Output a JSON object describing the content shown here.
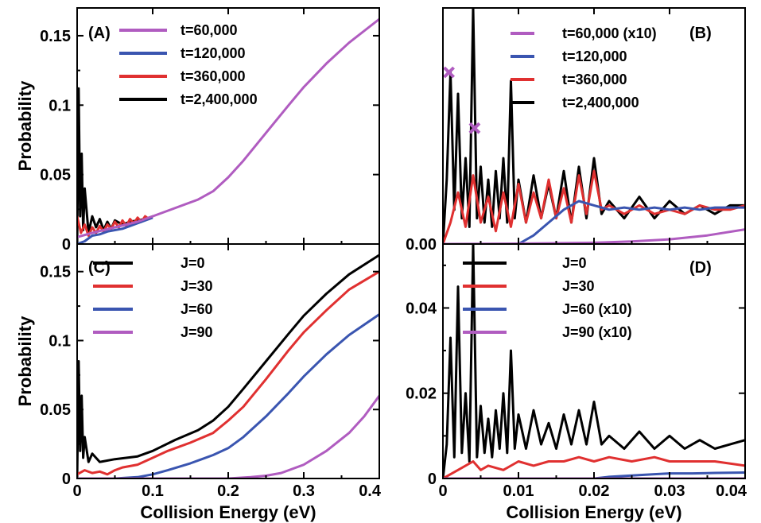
{
  "chart_data": [
    {
      "panel": "A",
      "type": "line",
      "panel_label": "(A)",
      "ylabel": "Probability",
      "xlabel": "",
      "xlim": [
        0,
        0.4
      ],
      "ylim": [
        0,
        0.17
      ],
      "x_ticks": [
        0,
        0.1,
        0.2,
        0.3,
        0.4
      ],
      "x_tick_labels": [
        "",
        "",
        "",
        "",
        ""
      ],
      "y_ticks": [
        0,
        0.05,
        0.1,
        0.15
      ],
      "y_tick_labels": [
        "0",
        "0.05",
        "0.1",
        "0.15"
      ],
      "legend_position": "top-right",
      "series": [
        {
          "name": "t=60,000",
          "color": "#b05cc0",
          "x": [
            0.0,
            0.02,
            0.05,
            0.08,
            0.1,
            0.13,
            0.16,
            0.18,
            0.2,
            0.22,
            0.25,
            0.28,
            0.3,
            0.33,
            0.36,
            0.4
          ],
          "y": [
            0.005,
            0.008,
            0.012,
            0.016,
            0.02,
            0.026,
            0.032,
            0.038,
            0.048,
            0.06,
            0.08,
            0.1,
            0.113,
            0.13,
            0.145,
            0.162
          ]
        },
        {
          "name": "t=120,000",
          "color": "#3a55b0",
          "x": [
            0.0,
            0.01,
            0.02,
            0.03,
            0.04,
            0.05,
            0.06,
            0.07,
            0.08,
            0.09,
            0.1
          ],
          "y": [
            0.0,
            0.002,
            0.006,
            0.007,
            0.009,
            0.01,
            0.011,
            0.013,
            0.015,
            0.017,
            0.019
          ]
        },
        {
          "name": "t=360,000",
          "color": "#e03030",
          "x": [
            0.0,
            0.005,
            0.01,
            0.015,
            0.02,
            0.025,
            0.03,
            0.035,
            0.04,
            0.045,
            0.05,
            0.055,
            0.06,
            0.065,
            0.07,
            0.075,
            0.08,
            0.085,
            0.09,
            0.095,
            0.1
          ],
          "y": [
            0.02,
            0.008,
            0.014,
            0.006,
            0.012,
            0.008,
            0.013,
            0.009,
            0.014,
            0.011,
            0.016,
            0.012,
            0.017,
            0.013,
            0.018,
            0.015,
            0.019,
            0.016,
            0.02,
            0.018,
            0.02
          ]
        },
        {
          "name": "t=2,400,000",
          "color": "#000000",
          "x": [
            0.0,
            0.002,
            0.004,
            0.006,
            0.008,
            0.01,
            0.015,
            0.02,
            0.025,
            0.03,
            0.035,
            0.04,
            0.045,
            0.05,
            0.06,
            0.07,
            0.08,
            0.09,
            0.1
          ],
          "y": [
            0.0,
            0.112,
            0.02,
            0.065,
            0.01,
            0.04,
            0.008,
            0.02,
            0.012,
            0.018,
            0.01,
            0.016,
            0.011,
            0.017,
            0.014,
            0.016,
            0.017,
            0.018,
            0.02
          ]
        }
      ]
    },
    {
      "panel": "B",
      "type": "line",
      "panel_label": "(B)",
      "ylabel": "",
      "xlabel": "",
      "xlim": [
        0,
        0.04
      ],
      "ylim": [
        0,
        0.055
      ],
      "x_ticks": [
        0,
        0.01,
        0.02,
        0.03,
        0.04
      ],
      "x_tick_labels": [
        "",
        "",
        "",
        "",
        ""
      ],
      "y_ticks": [
        0
      ],
      "y_tick_labels": [
        "0.00"
      ],
      "legend_position": "top-right",
      "markers": [
        {
          "x": 0.0008,
          "y": 0.04,
          "color": "#b05cc0"
        },
        {
          "x": 0.0042,
          "y": 0.027,
          "color": "#b05cc0"
        }
      ],
      "series": [
        {
          "name": "t=60,000 (x10)",
          "color": "#b05cc0",
          "x": [
            0.0,
            0.01,
            0.02,
            0.025,
            0.03,
            0.035,
            0.04
          ],
          "y": [
            0.0,
            0.0001,
            0.0003,
            0.0006,
            0.0011,
            0.002,
            0.0034
          ]
        },
        {
          "name": "t=120,000",
          "color": "#3a55b0",
          "x": [
            0.0,
            0.01,
            0.012,
            0.014,
            0.016,
            0.018,
            0.02,
            0.022,
            0.024,
            0.026,
            0.028,
            0.03,
            0.032,
            0.034,
            0.036,
            0.038,
            0.04
          ],
          "y": [
            0.0,
            0.0,
            0.002,
            0.005,
            0.008,
            0.01,
            0.009,
            0.008,
            0.0085,
            0.008,
            0.0085,
            0.008,
            0.0085,
            0.008,
            0.0085,
            0.0085,
            0.0085
          ]
        },
        {
          "name": "t=360,000",
          "color": "#e03030",
          "x": [
            0.0,
            0.001,
            0.002,
            0.003,
            0.004,
            0.005,
            0.006,
            0.007,
            0.008,
            0.009,
            0.01,
            0.011,
            0.012,
            0.013,
            0.014,
            0.015,
            0.016,
            0.017,
            0.018,
            0.019,
            0.02,
            0.021,
            0.022,
            0.024,
            0.026,
            0.028,
            0.03,
            0.032,
            0.034,
            0.036,
            0.038,
            0.04
          ],
          "y": [
            0.0,
            0.005,
            0.012,
            0.004,
            0.016,
            0.005,
            0.011,
            0.003,
            0.012,
            0.004,
            0.014,
            0.005,
            0.012,
            0.006,
            0.015,
            0.006,
            0.013,
            0.005,
            0.016,
            0.007,
            0.017,
            0.008,
            0.009,
            0.007,
            0.009,
            0.007,
            0.008,
            0.007,
            0.009,
            0.008,
            0.008,
            0.009
          ]
        },
        {
          "name": "t=2,400,000",
          "color": "#000000",
          "x": [
            0.0,
            0.0005,
            0.001,
            0.0015,
            0.002,
            0.0025,
            0.003,
            0.0035,
            0.004,
            0.0045,
            0.005,
            0.0055,
            0.006,
            0.0065,
            0.007,
            0.0075,
            0.008,
            0.0085,
            0.009,
            0.0095,
            0.01,
            0.011,
            0.012,
            0.013,
            0.014,
            0.015,
            0.016,
            0.017,
            0.018,
            0.019,
            0.02,
            0.021,
            0.022,
            0.024,
            0.026,
            0.028,
            0.03,
            0.032,
            0.034,
            0.036,
            0.038,
            0.04
          ],
          "y": [
            0.0,
            0.015,
            0.04,
            0.008,
            0.035,
            0.006,
            0.02,
            0.004,
            0.055,
            0.006,
            0.018,
            0.005,
            0.015,
            0.004,
            0.017,
            0.006,
            0.02,
            0.005,
            0.038,
            0.006,
            0.015,
            0.005,
            0.016,
            0.006,
            0.014,
            0.006,
            0.017,
            0.005,
            0.018,
            0.006,
            0.02,
            0.007,
            0.01,
            0.006,
            0.011,
            0.006,
            0.01,
            0.007,
            0.009,
            0.007,
            0.009,
            0.009
          ]
        }
      ]
    },
    {
      "panel": "C",
      "type": "line",
      "panel_label": "(C)",
      "ylabel": "Probability",
      "xlabel": "Collision Energy (eV)",
      "xlim": [
        0,
        0.4
      ],
      "ylim": [
        0,
        0.17
      ],
      "x_ticks": [
        0,
        0.1,
        0.2,
        0.3,
        0.4
      ],
      "x_tick_labels": [
        "0",
        "0.1",
        "0.2",
        "0.3",
        "0.4"
      ],
      "y_ticks": [
        0,
        0.05,
        0.1,
        0.15
      ],
      "y_tick_labels": [
        "0",
        "0.05",
        "0.1",
        "0.15"
      ],
      "legend_position": "top-left",
      "series": [
        {
          "name": "J=0",
          "color": "#000000",
          "x": [
            0.0,
            0.002,
            0.004,
            0.006,
            0.008,
            0.01,
            0.015,
            0.02,
            0.03,
            0.05,
            0.08,
            0.1,
            0.13,
            0.16,
            0.18,
            0.2,
            0.22,
            0.25,
            0.28,
            0.3,
            0.33,
            0.36,
            0.4
          ],
          "y": [
            0.0,
            0.085,
            0.02,
            0.06,
            0.015,
            0.03,
            0.012,
            0.018,
            0.012,
            0.014,
            0.016,
            0.02,
            0.028,
            0.035,
            0.042,
            0.052,
            0.065,
            0.085,
            0.105,
            0.118,
            0.134,
            0.148,
            0.162
          ]
        },
        {
          "name": "J=30",
          "color": "#e03030",
          "x": [
            0.0,
            0.01,
            0.02,
            0.03,
            0.04,
            0.05,
            0.06,
            0.08,
            0.1,
            0.12,
            0.15,
            0.18,
            0.2,
            0.22,
            0.25,
            0.28,
            0.3,
            0.33,
            0.36,
            0.4
          ],
          "y": [
            0.003,
            0.006,
            0.004,
            0.005,
            0.003,
            0.006,
            0.008,
            0.01,
            0.015,
            0.02,
            0.026,
            0.033,
            0.042,
            0.052,
            0.072,
            0.093,
            0.106,
            0.122,
            0.137,
            0.15
          ]
        },
        {
          "name": "J=60",
          "color": "#3a55b0",
          "x": [
            0.0,
            0.05,
            0.08,
            0.1,
            0.12,
            0.15,
            0.18,
            0.2,
            0.22,
            0.25,
            0.28,
            0.3,
            0.33,
            0.36,
            0.4
          ],
          "y": [
            0.0,
            0.0,
            0.001,
            0.003,
            0.006,
            0.011,
            0.017,
            0.022,
            0.03,
            0.045,
            0.062,
            0.074,
            0.09,
            0.104,
            0.119
          ]
        },
        {
          "name": "J=90",
          "color": "#b05cc0",
          "x": [
            0.0,
            0.2,
            0.23,
            0.25,
            0.27,
            0.3,
            0.33,
            0.36,
            0.38,
            0.4
          ],
          "y": [
            0.0,
            0.0,
            0.001,
            0.002,
            0.004,
            0.01,
            0.02,
            0.033,
            0.045,
            0.06
          ]
        }
      ]
    },
    {
      "panel": "D",
      "type": "line",
      "panel_label": "(D)",
      "ylabel": "",
      "xlabel": "Collision Energy (eV)",
      "xlim": [
        0,
        0.04
      ],
      "ylim": [
        0,
        0.055
      ],
      "x_ticks": [
        0,
        0.01,
        0.02,
        0.03,
        0.04
      ],
      "x_tick_labels": [
        "0",
        "0.01",
        "0.02",
        "0.03",
        "0.04"
      ],
      "y_ticks": [
        0,
        0.02,
        0.04
      ],
      "y_tick_labels": [
        "0",
        "0.02",
        "0.04"
      ],
      "legend_position": "top-right",
      "series": [
        {
          "name": "J=0",
          "color": "#000000",
          "x": [
            0.0,
            0.0005,
            0.001,
            0.0015,
            0.002,
            0.0025,
            0.003,
            0.0035,
            0.004,
            0.0045,
            0.005,
            0.0055,
            0.006,
            0.0065,
            0.007,
            0.0075,
            0.008,
            0.0085,
            0.009,
            0.0095,
            0.01,
            0.011,
            0.012,
            0.013,
            0.014,
            0.015,
            0.016,
            0.017,
            0.018,
            0.019,
            0.02,
            0.021,
            0.022,
            0.024,
            0.026,
            0.028,
            0.03,
            0.032,
            0.034,
            0.036,
            0.038,
            0.04
          ],
          "y": [
            0.0,
            0.008,
            0.033,
            0.005,
            0.045,
            0.006,
            0.02,
            0.004,
            0.055,
            0.005,
            0.017,
            0.006,
            0.014,
            0.005,
            0.016,
            0.007,
            0.02,
            0.006,
            0.03,
            0.007,
            0.015,
            0.007,
            0.016,
            0.008,
            0.013,
            0.007,
            0.015,
            0.008,
            0.016,
            0.008,
            0.018,
            0.008,
            0.01,
            0.007,
            0.011,
            0.007,
            0.01,
            0.007,
            0.009,
            0.007,
            0.008,
            0.009
          ]
        },
        {
          "name": "J=30",
          "color": "#e03030",
          "x": [
            0.0,
            0.002,
            0.004,
            0.005,
            0.006,
            0.008,
            0.01,
            0.012,
            0.014,
            0.016,
            0.018,
            0.02,
            0.022,
            0.025,
            0.028,
            0.03,
            0.033,
            0.036,
            0.04
          ],
          "y": [
            0.0,
            0.002,
            0.004,
            0.002,
            0.003,
            0.002,
            0.004,
            0.003,
            0.004,
            0.004,
            0.005,
            0.004,
            0.005,
            0.004,
            0.005,
            0.004,
            0.004,
            0.004,
            0.003
          ]
        },
        {
          "name": "J=60 (x10)",
          "color": "#3a55b0",
          "x": [
            0.0,
            0.01,
            0.02,
            0.022,
            0.025,
            0.028,
            0.03,
            0.033,
            0.036,
            0.04
          ],
          "y": [
            0.0,
            0.0,
            0.0,
            0.0004,
            0.0007,
            0.001,
            0.0012,
            0.0012,
            0.0013,
            0.0014
          ]
        },
        {
          "name": "J=90 (x10)",
          "color": "#b05cc0",
          "x": [
            0.0,
            0.04
          ],
          "y": [
            0.0,
            0.0
          ]
        }
      ]
    }
  ]
}
